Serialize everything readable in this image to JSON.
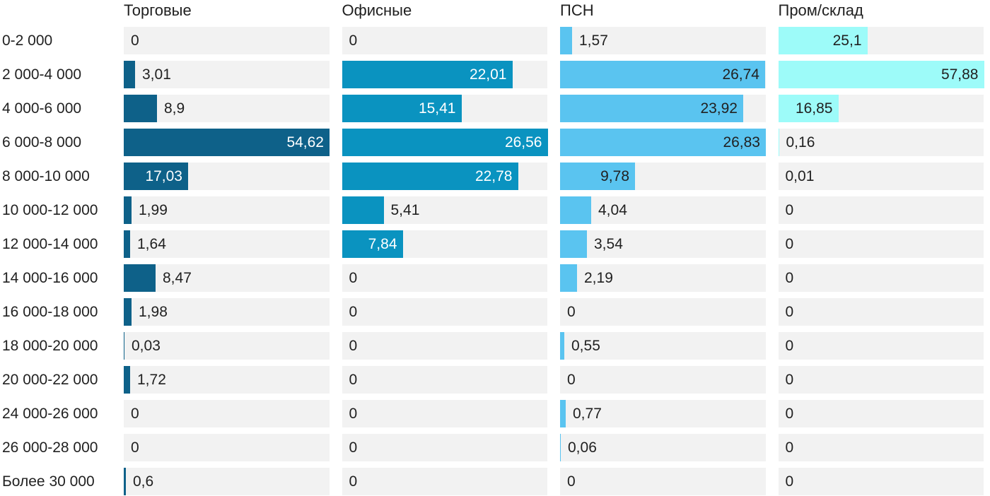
{
  "chart_data": {
    "type": "bar",
    "orientation": "horizontal",
    "scale": "per-column-max",
    "value_decimal_separator": ",",
    "grid": false,
    "legend_position": "column-headers",
    "track_color": "#f2f2f2",
    "text_color": "#212121",
    "header_text_color": "#1f1f1f",
    "categories": [
      "0-2 000",
      "2 000-4 000",
      "4 000-6 000",
      "6 000-8 000",
      "8 000-10 000",
      "10 000-12 000",
      "12 000-14 000",
      "14 000-16 000",
      "16 000-18 000",
      "18 000-20 000",
      "20 000-22 000",
      "24 000-26 000",
      "26 000-28 000",
      "Более 30 000"
    ],
    "series": [
      {
        "name": "Торговые",
        "color": "#0e6189",
        "inside_label_color": "#ffffff",
        "values": [
          0,
          3.01,
          8.9,
          54.62,
          17.03,
          1.99,
          1.64,
          8.47,
          1.98,
          0.03,
          1.72,
          0,
          0,
          0.6
        ]
      },
      {
        "name": "Офисные",
        "color": "#0a93c0",
        "inside_label_color": "#ffffff",
        "values": [
          0,
          22.01,
          15.41,
          26.56,
          22.78,
          5.41,
          7.84,
          0,
          0,
          0,
          0,
          0,
          0,
          0
        ]
      },
      {
        "name": "ПСН",
        "color": "#5ac4f0",
        "inside_label_color": "#212121",
        "values": [
          1.57,
          26.74,
          23.92,
          26.83,
          9.78,
          4.04,
          3.54,
          2.19,
          0,
          0.55,
          0,
          0.77,
          0.06,
          0
        ]
      },
      {
        "name": "Пром/склад",
        "color": "#9dfbf9",
        "inside_label_color": "#212121",
        "values": [
          25.1,
          57.88,
          16.85,
          0.16,
          0.01,
          0,
          0,
          0,
          0,
          0,
          0,
          0,
          0,
          0
        ]
      }
    ]
  }
}
